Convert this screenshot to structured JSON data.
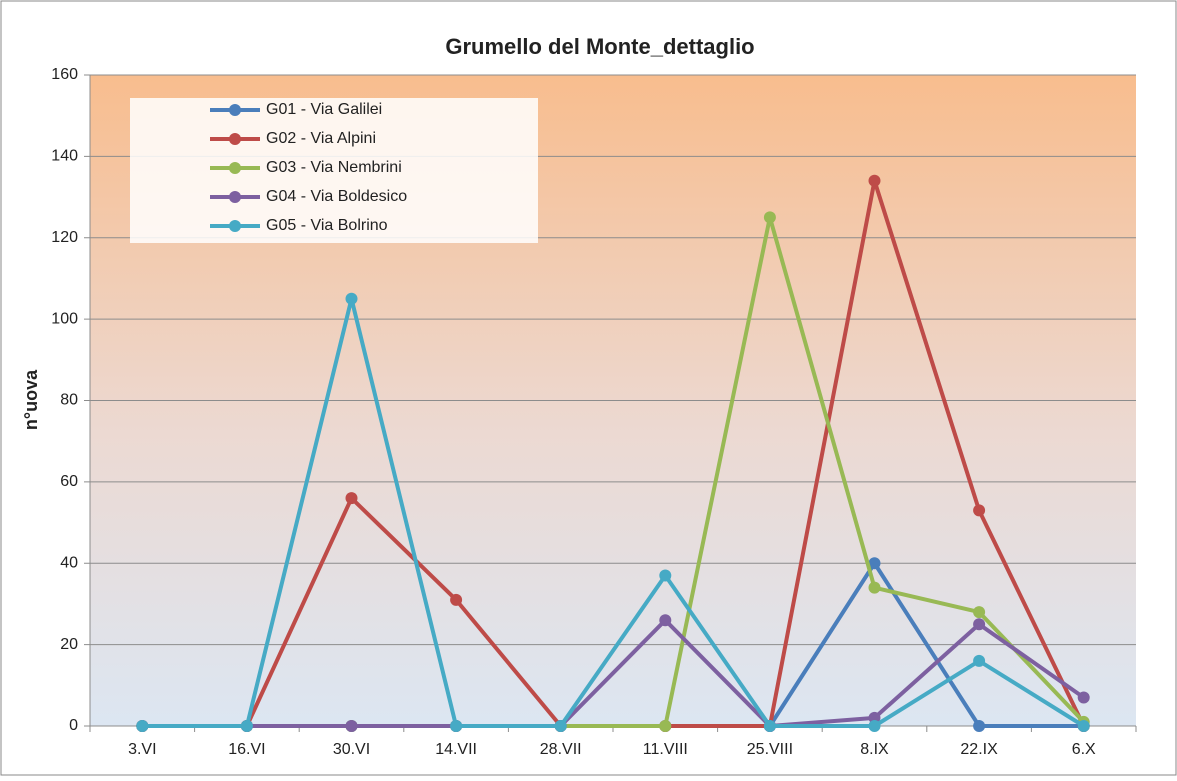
{
  "chart_data": {
    "type": "line",
    "title": "Grumello del Monte_dettaglio",
    "y_label": "n°uova",
    "categories": [
      "3.VI",
      "16.VI",
      "30.VI",
      "14.VII",
      "28.VII",
      "11.VIII",
      "25.VIII",
      "8.IX",
      "22.IX",
      "6.X"
    ],
    "series": [
      {
        "name": "G01 - Via Galilei",
        "color": "#4a7ebb",
        "values": [
          0,
          0,
          0,
          0,
          0,
          0,
          0,
          40,
          0,
          0
        ]
      },
      {
        "name": "G02 - Via Alpini",
        "color": "#be4b48",
        "values": [
          0,
          0,
          56,
          31,
          0,
          0,
          0,
          134,
          53,
          0
        ]
      },
      {
        "name": "G03 - Via Nembrini",
        "color": "#98b954",
        "values": [
          0,
          0,
          0,
          0,
          0,
          0,
          125,
          34,
          28,
          1
        ]
      },
      {
        "name": "G04 - Via Boldesico",
        "color": "#7d60a0",
        "values": [
          0,
          0,
          0,
          0,
          0,
          26,
          0,
          2,
          25,
          7
        ]
      },
      {
        "name": "G05 - Via Bolrino",
        "color": "#46aac5",
        "values": [
          0,
          0,
          105,
          0,
          0,
          37,
          0,
          0,
          16,
          0
        ]
      }
    ],
    "ylim": [
      0,
      160
    ],
    "yticks": [
      0,
      20,
      40,
      60,
      80,
      100,
      120,
      140,
      160
    ],
    "grid": true,
    "legend": "upper left"
  }
}
